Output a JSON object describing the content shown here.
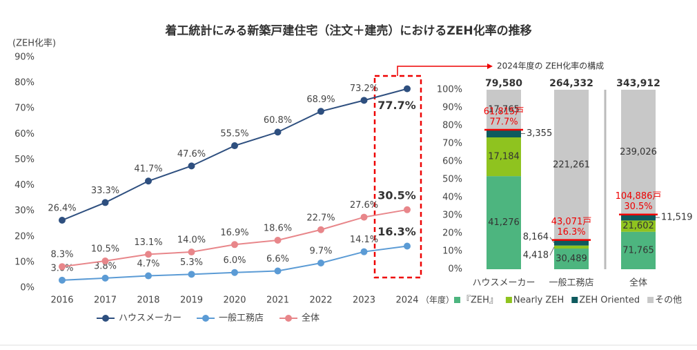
{
  "chart_data": [
    {
      "type": "line",
      "title": "着工統計にみる新築戸建住宅（注文＋建売）におけるZEH化率の推移",
      "y_label": "(ZEH化率)",
      "x_label": "（年度）",
      "categories": [
        "2016",
        "2017",
        "2018",
        "2019",
        "2020",
        "2021",
        "2022",
        "2023",
        "2024"
      ],
      "ylim": [
        0,
        90
      ],
      "yticks": [
        {
          "value": 0,
          "label": "0%"
        },
        {
          "value": 10,
          "label": "10%"
        },
        {
          "value": 20,
          "label": "20%"
        },
        {
          "value": 30,
          "label": "30%"
        },
        {
          "value": 40,
          "label": "40%"
        },
        {
          "value": 50,
          "label": "50%"
        },
        {
          "value": 60,
          "label": "60%"
        },
        {
          "value": 70,
          "label": "70%"
        },
        {
          "value": 80,
          "label": "80%"
        },
        {
          "value": 90,
          "label": "90%"
        }
      ],
      "legend": "bottom",
      "series": [
        {
          "name": "ハウスメーカー",
          "color": "#2e4f7f",
          "values": [
            26.4,
            33.3,
            41.7,
            47.6,
            55.5,
            60.8,
            68.9,
            73.2,
            77.7
          ],
          "value_labels": [
            "26.4%",
            "33.3%",
            "41.7%",
            "47.6%",
            "55.5%",
            "60.8%",
            "68.9%",
            "73.2%",
            "77.7%"
          ]
        },
        {
          "name": "一般工務店",
          "color": "#5b9bd5",
          "values": [
            3.0,
            3.8,
            4.7,
            5.3,
            6.0,
            6.6,
            9.7,
            14.1,
            16.3
          ],
          "value_labels": [
            "3.0%",
            "3.8%",
            "4.7%",
            "5.3%",
            "6.0%",
            "6.6%",
            "9.7%",
            "14.1%",
            "16.3%"
          ]
        },
        {
          "name": "全体",
          "color": "#e8868a",
          "values": [
            8.3,
            10.5,
            13.1,
            14.0,
            16.9,
            18.6,
            22.7,
            27.6,
            30.5
          ],
          "value_labels": [
            "8.3%",
            "10.5%",
            "13.1%",
            "14.0%",
            "16.9%",
            "18.6%",
            "22.7%",
            "27.6%",
            "30.5%"
          ]
        }
      ]
    },
    {
      "type": "stacked_bar_100",
      "title": "2024年度の ZEH化率の構成",
      "categories": [
        "ハウスメーカー",
        "一般工務店",
        "全体"
      ],
      "totals": [
        79580,
        264332,
        343912
      ],
      "total_labels": [
        "79,580",
        "264,332",
        "343,912"
      ],
      "zeh_counts": [
        61815,
        43071,
        104886
      ],
      "zeh_count_labels": [
        "61,815戸",
        "43,071戸",
        "104,886戸"
      ],
      "zeh_rates": [
        77.7,
        16.3,
        30.5
      ],
      "zeh_rate_labels": [
        "77.7%",
        "16.3%",
        "30.5%"
      ],
      "ylim": [
        0,
        100
      ],
      "yticks": [
        {
          "value": 0,
          "label": "0%"
        },
        {
          "value": 10,
          "label": "10%"
        },
        {
          "value": 20,
          "label": "20%"
        },
        {
          "value": 30,
          "label": "30%"
        },
        {
          "value": 40,
          "label": "40%"
        },
        {
          "value": 50,
          "label": "50%"
        },
        {
          "value": 60,
          "label": "60%"
        },
        {
          "value": 70,
          "label": "70%"
        },
        {
          "value": 80,
          "label": "80%"
        },
        {
          "value": 90,
          "label": "90%"
        },
        {
          "value": 100,
          "label": "100%"
        }
      ],
      "legend": "bottom",
      "series": [
        {
          "name": "『ZEH』",
          "color": "#4db57f",
          "values": [
            41276,
            30489,
            71765
          ],
          "value_labels": [
            "41,276",
            "30,489",
            "71,765"
          ]
        },
        {
          "name": "Nearly ZEH",
          "color": "#8fc31f",
          "values": [
            17184,
            4418,
            21602
          ],
          "value_labels": [
            "17,184",
            "4,418",
            "21,602"
          ]
        },
        {
          "name": "ZEH Oriented",
          "color": "#0e5a5e",
          "values": [
            3355,
            8164,
            11519
          ],
          "value_labels": [
            "3,355",
            "8,164",
            "11,519"
          ]
        },
        {
          "name": "その他",
          "color": "#c8c8c8",
          "values": [
            17765,
            221261,
            239026
          ],
          "value_labels": [
            "17,765",
            "221,261",
            "239,026"
          ]
        }
      ]
    }
  ]
}
